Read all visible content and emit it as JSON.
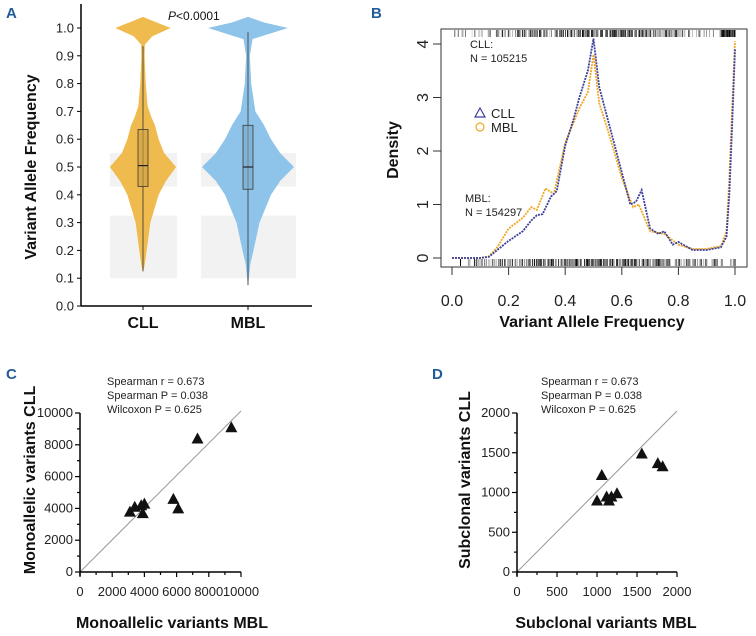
{
  "chart_data": [
    {
      "panel": "A",
      "type": "violin",
      "ylabel": "Variant Allele Frequency",
      "ylim": [
        0,
        1.0
      ],
      "yticks": [
        "0.0",
        "0.1",
        "0.2",
        "0.3",
        "0.4",
        "0.5",
        "0.6",
        "0.7",
        "0.8",
        "0.9",
        "1.0"
      ],
      "annotation": "P<0.0001",
      "annotation_italic": "P",
      "annotation_rest": "<0.0001",
      "shaded_ranges": [
        [
          0.43,
          0.55
        ],
        [
          0.1,
          0.325
        ]
      ],
      "groups": [
        {
          "name": "CLL",
          "color": "#f0bb4e",
          "box": {
            "q1": 0.43,
            "median": 0.505,
            "q3": 0.635,
            "min": 0.125,
            "max": 0.935
          },
          "profile": [
            [
              0.12,
              0
            ],
            [
              0.15,
              0.04
            ],
            [
              0.2,
              0.08
            ],
            [
              0.3,
              0.16
            ],
            [
              0.4,
              0.34
            ],
            [
              0.45,
              0.5
            ],
            [
              0.5,
              0.72
            ],
            [
              0.55,
              0.46
            ],
            [
              0.6,
              0.34
            ],
            [
              0.65,
              0.26
            ],
            [
              0.68,
              0.18
            ],
            [
              0.72,
              0.1
            ],
            [
              0.8,
              0.06
            ],
            [
              0.9,
              0.035
            ],
            [
              0.94,
              0.04
            ],
            [
              0.97,
              0.2
            ],
            [
              1.0,
              0.6
            ],
            [
              1.02,
              0.3
            ],
            [
              1.04,
              0
            ]
          ]
        },
        {
          "name": "MBL",
          "color": "#8ec4ea",
          "box": {
            "q1": 0.42,
            "median": 0.5,
            "q3": 0.65,
            "min": 0.075,
            "max": 0.985
          },
          "profile": [
            [
              0.07,
              0
            ],
            [
              0.15,
              0.05
            ],
            [
              0.2,
              0.12
            ],
            [
              0.3,
              0.25
            ],
            [
              0.4,
              0.5
            ],
            [
              0.45,
              0.7
            ],
            [
              0.5,
              1.0
            ],
            [
              0.55,
              0.7
            ],
            [
              0.6,
              0.5
            ],
            [
              0.65,
              0.35
            ],
            [
              0.7,
              0.16
            ],
            [
              0.8,
              0.07
            ],
            [
              0.9,
              0.04
            ],
            [
              0.96,
              0.1
            ],
            [
              1.0,
              0.87
            ],
            [
              1.02,
              0.35
            ],
            [
              1.04,
              0
            ]
          ]
        }
      ]
    },
    {
      "panel": "B",
      "type": "line",
      "xlabel": "Variant Allele Frequency",
      "ylabel": "Density",
      "xlim": [
        0,
        1
      ],
      "ylim": [
        0,
        4
      ],
      "xticks": [
        "0.0",
        "0.2",
        "0.4",
        "0.6",
        "0.8",
        "1.0"
      ],
      "yticks": [
        "0",
        "1",
        "2",
        "3",
        "4"
      ],
      "annotations": {
        "cll_label": "CLL:",
        "cll_n": "N = 105215",
        "mbl_label": "MBL:",
        "mbl_n": "N = 154297"
      },
      "legend_position": "left",
      "series": [
        {
          "name": "CLL",
          "marker": "triangle",
          "color": "#3b3f9a",
          "x": [
            0,
            0.1,
            0.13,
            0.16,
            0.2,
            0.25,
            0.28,
            0.3,
            0.32,
            0.35,
            0.37,
            0.4,
            0.43,
            0.45,
            0.48,
            0.5,
            0.52,
            0.55,
            0.6,
            0.63,
            0.65,
            0.67,
            0.7,
            0.73,
            0.75,
            0.78,
            0.8,
            0.85,
            0.9,
            0.95,
            0.97,
            0.98,
            0.99,
            1.0
          ],
          "y": [
            0,
            0,
            0.02,
            0.15,
            0.32,
            0.5,
            0.7,
            0.8,
            0.82,
            1.15,
            1.25,
            2.1,
            2.6,
            3.0,
            3.5,
            4.1,
            3.2,
            2.6,
            1.6,
            1.0,
            1.05,
            1.27,
            0.55,
            0.45,
            0.5,
            0.25,
            0.3,
            0.15,
            0.15,
            0.2,
            0.4,
            1.2,
            2.5,
            3.9
          ]
        },
        {
          "name": "MBL",
          "marker": "circle",
          "color": "#f0a820",
          "x": [
            0,
            0.1,
            0.13,
            0.16,
            0.2,
            0.25,
            0.28,
            0.3,
            0.33,
            0.36,
            0.4,
            0.45,
            0.48,
            0.5,
            0.52,
            0.55,
            0.6,
            0.64,
            0.66,
            0.7,
            0.75,
            0.8,
            0.85,
            0.9,
            0.95,
            0.97,
            0.98,
            0.99,
            1.0
          ],
          "y": [
            0,
            0,
            0.03,
            0.2,
            0.55,
            0.75,
            0.95,
            0.9,
            1.3,
            1.2,
            2.15,
            2.8,
            3.1,
            3.8,
            2.9,
            2.4,
            1.5,
            0.95,
            1.0,
            0.5,
            0.45,
            0.25,
            0.17,
            0.17,
            0.22,
            0.5,
            1.5,
            2.8,
            4.05
          ]
        }
      ]
    },
    {
      "panel": "C",
      "type": "scatter",
      "xlabel": "Monoallelic variants MBL",
      "ylabel": "Monoallelic variants CLL",
      "xlim": [
        0,
        10000
      ],
      "ylim": [
        0,
        10000
      ],
      "xticks": [
        "0",
        "2000",
        "4000",
        "6000",
        "8000",
        "10000"
      ],
      "yticks": [
        "0",
        "2000",
        "4000",
        "6000",
        "8000",
        "10000"
      ],
      "stats": [
        "Spearman r = 0.673",
        "Spearman P = 0.038",
        "Wilcoxon P = 0.625"
      ],
      "identity_line": true,
      "x": [
        3100,
        3400,
        3800,
        4000,
        3900,
        5800,
        6100,
        7300,
        9400
      ],
      "y": [
        3800,
        4100,
        4200,
        4300,
        3700,
        4600,
        4000,
        8400,
        9100
      ]
    },
    {
      "panel": "D",
      "type": "scatter",
      "xlabel": "Subclonal variants MBL",
      "ylabel": "Subclonal variants CLL",
      "xlim": [
        0,
        2000
      ],
      "ylim": [
        0,
        2000
      ],
      "xticks": [
        "0",
        "500",
        "1000",
        "1500",
        "2000"
      ],
      "yticks": [
        "0",
        "500",
        "1000",
        "1500",
        "2000"
      ],
      "stats": [
        "Spearman r = 0.673",
        "Spearman P = 0.038",
        "Wilcoxon P = 0.625"
      ],
      "identity_line": true,
      "x": [
        1000,
        1060,
        1120,
        1150,
        1180,
        1250,
        1560,
        1760,
        1820
      ],
      "y": [
        900,
        1220,
        950,
        900,
        950,
        990,
        1490,
        1370,
        1330
      ]
    }
  ],
  "panel_labels": [
    "A",
    "B",
    "C",
    "D"
  ]
}
